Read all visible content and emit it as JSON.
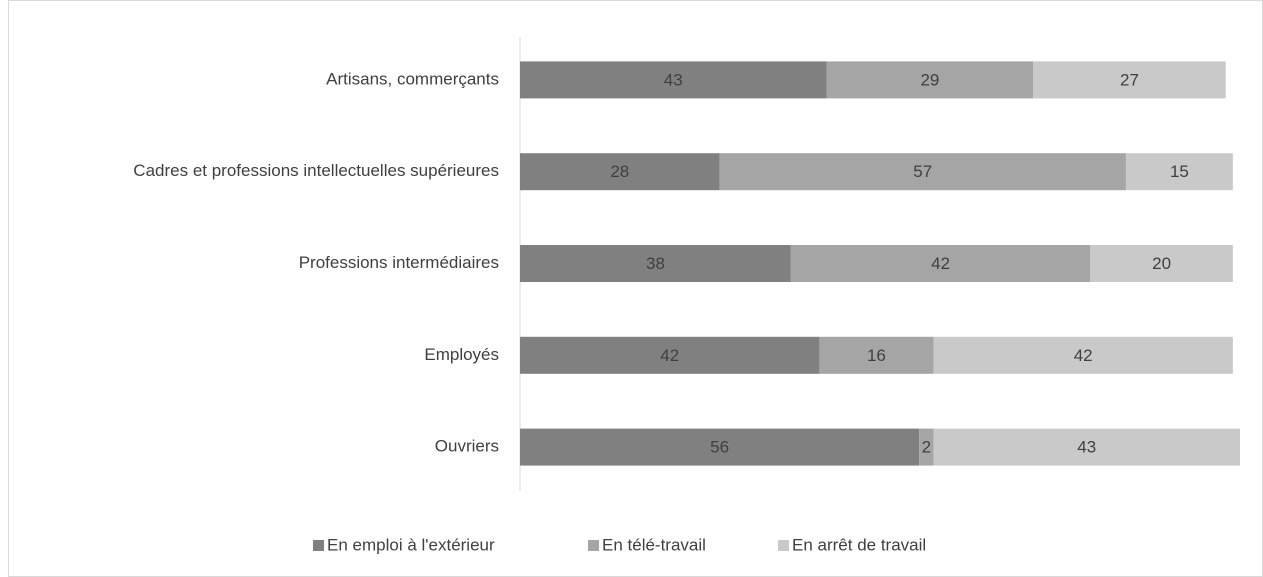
{
  "chart_data": {
    "type": "stacked-barh",
    "categories": [
      "Artisans, commerçants",
      "Cadres et professions intellectuelles supérieures",
      "Professions intermédiaires",
      "Employés",
      "Ouvriers"
    ],
    "series": [
      {
        "name": "En emploi à l'extérieur",
        "color": "#808080",
        "values": [
          43,
          28,
          38,
          42,
          56
        ]
      },
      {
        "name": "En télé-travail",
        "color": "#a5a5a5",
        "values": [
          29,
          57,
          42,
          16,
          2
        ]
      },
      {
        "name": "En arrêt de travail",
        "color": "#c9c9c9",
        "values": [
          27,
          15,
          20,
          42,
          43
        ]
      }
    ],
    "legend": "bottom"
  }
}
